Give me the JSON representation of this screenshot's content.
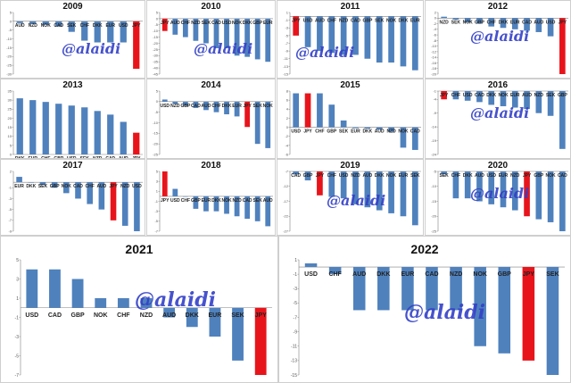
{
  "watermark": "@alaidi",
  "colors": {
    "bar": "#4f81bd",
    "highlight": "#e8141b",
    "axis": "#808080",
    "tick_text": "#555555"
  },
  "chart_data": [
    {
      "type": "bar",
      "title": "2009",
      "highlight": "JPY",
      "categories": [
        "AUD",
        "NZD",
        "NOK",
        "CAD",
        "SEK",
        "CHF",
        "DKK",
        "EUR",
        "USD",
        "JPY"
      ],
      "values": [
        -1,
        -1.5,
        -2,
        -3,
        -6,
        -11,
        -12,
        -12,
        -12,
        -27
      ],
      "ylim": [
        -30,
        5
      ],
      "yticks": [
        5,
        0,
        -5,
        -10,
        -15,
        -20,
        -25,
        -30
      ]
    },
    {
      "type": "bar",
      "title": "2010",
      "highlight": "JPY",
      "categories": [
        "JPY",
        "AUD",
        "CHF",
        "NZD",
        "SEK",
        "CAD",
        "USD",
        "NOK",
        "DKK",
        "GBP",
        "EUR"
      ],
      "values": [
        -10,
        -13,
        -15,
        -18,
        -20,
        -24,
        -24,
        -30,
        -31,
        -33,
        -35
      ],
      "ylim": [
        -45,
        5
      ],
      "yticks": [
        5,
        0,
        -5,
        -10,
        -15,
        -20,
        -25,
        -30,
        -35,
        -40,
        -45
      ]
    },
    {
      "type": "bar",
      "title": "2011",
      "highlight": "JPY",
      "categories": [
        "JPY",
        "USD",
        "AUD",
        "CHF",
        "NZD",
        "CAD",
        "GBP",
        "SEK",
        "NOK",
        "DKK",
        "EUR"
      ],
      "values": [
        -5,
        -8,
        -9,
        -9.5,
        -10,
        -10,
        -11,
        -12,
        -12,
        -13,
        -14
      ],
      "ylim": [
        -15,
        1
      ],
      "yticks": [
        1,
        -1,
        -3,
        -5,
        -7,
        -9,
        -11,
        -13,
        -15
      ]
    },
    {
      "type": "bar",
      "title": "2012",
      "highlight": "JPY",
      "categories": [
        "NZD",
        "SEK",
        "NOK",
        "GBP",
        "CHF",
        "DKK",
        "EUR",
        "CAD",
        "AUD",
        "USD",
        "JPY"
      ],
      "values": [
        0.5,
        -0.5,
        -1.5,
        -2,
        -3,
        -3.5,
        -4,
        -4.5,
        -5,
        -6.5,
        -20
      ],
      "ylim": [
        -20,
        2
      ],
      "yticks": [
        2,
        0,
        -2,
        -4,
        -6,
        -8,
        -10,
        -12,
        -14,
        -16,
        -18,
        -20
      ]
    },
    {
      "type": "bar",
      "title": "2013",
      "highlight": "JPY",
      "categories": [
        "DKK",
        "EUR",
        "CHF",
        "GBP",
        "USD",
        "SEK",
        "NZD",
        "CAD",
        "AUD",
        "JPY"
      ],
      "values": [
        31,
        30,
        29,
        28,
        27,
        26,
        24,
        22,
        18,
        12
      ],
      "ylim": [
        0,
        35
      ],
      "yticks": [
        35,
        30,
        25,
        20,
        15,
        10,
        5,
        0
      ]
    },
    {
      "type": "bar",
      "title": "2014",
      "highlight": "JPY",
      "categories": [
        "USD",
        "NZD",
        "GBP",
        "CAD",
        "AUD",
        "CHF",
        "DKK",
        "EUR",
        "JPY",
        "SEK",
        "NOK"
      ],
      "values": [
        1,
        -1,
        -2,
        -3,
        -4,
        -5,
        -6,
        -7,
        -12,
        -20,
        -22
      ],
      "ylim": [
        -25,
        5
      ],
      "yticks": [
        5,
        0,
        -5,
        -10,
        -15,
        -20,
        -25
      ]
    },
    {
      "type": "bar",
      "title": "2015",
      "highlight": "JPY",
      "categories": [
        "USD",
        "JPY",
        "CHF",
        "GBP",
        "SEK",
        "EUR",
        "DKK",
        "AUD",
        "NZD",
        "NOK",
        "CAD"
      ],
      "values": [
        7.5,
        7.5,
        7.5,
        5,
        1.5,
        -0.2,
        -0.3,
        -0.5,
        -1,
        -4.5,
        -5
      ],
      "ylim": [
        -6,
        8
      ],
      "yticks": [
        8,
        6,
        4,
        2,
        0,
        -2,
        -4,
        -6
      ]
    },
    {
      "type": "bar",
      "title": "2016",
      "highlight": "JPY",
      "categories": [
        "JPY",
        "CHF",
        "USD",
        "CAD",
        "DKK",
        "NOK",
        "EUR",
        "AUD",
        "NZD",
        "SEK",
        "GBP"
      ],
      "values": [
        -4,
        -4,
        -4.5,
        -5,
        -6,
        -6.5,
        -7,
        -7.5,
        -9,
        -10,
        -22
      ],
      "ylim": [
        -24,
        -1
      ],
      "yticks": [
        -1,
        -4,
        -9,
        -14,
        -19,
        -24
      ]
    },
    {
      "type": "bar",
      "title": "2017",
      "highlight": "JPY",
      "categories": [
        "EUR",
        "DKK",
        "SEK",
        "GBP",
        "NOK",
        "CAD",
        "CHF",
        "AUD",
        "JPY",
        "NZD",
        "USD"
      ],
      "values": [
        1,
        0,
        -0.5,
        -1,
        -2,
        -3,
        -4,
        -5,
        -7,
        -8,
        -9
      ],
      "ylim": [
        -9,
        2
      ],
      "yticks": [
        2,
        -1,
        -3,
        -5,
        -7,
        -9
      ]
    },
    {
      "type": "bar",
      "title": "2018",
      "highlight": "JPY",
      "categories": [
        "JPY",
        "USD",
        "CHF",
        "GBP",
        "EUR",
        "DKK",
        "NOK",
        "NZD",
        "CAD",
        "SEK",
        "AUD"
      ],
      "values": [
        5,
        1.5,
        0,
        -2.5,
        -3,
        -3,
        -3.5,
        -4,
        -4.5,
        -5,
        -6
      ],
      "ylim": [
        -7,
        5
      ],
      "yticks": [
        5,
        3,
        1,
        -1,
        -3,
        -5,
        -7
      ]
    },
    {
      "type": "bar",
      "title": "2019",
      "highlight": "JPY",
      "categories": [
        "CAD",
        "GBP",
        "JPY",
        "CHF",
        "USD",
        "NZD",
        "AUD",
        "DKK",
        "NOK",
        "EUR",
        "SEK"
      ],
      "values": [
        -8,
        -10,
        -15,
        -15.5,
        -16,
        -18,
        -19,
        -20,
        -21,
        -22,
        -25
      ],
      "ylim": [
        -27,
        -7
      ],
      "yticks": [
        -7,
        -12,
        -17,
        -22,
        -27
      ]
    },
    {
      "type": "bar",
      "title": "2020",
      "highlight": "JPY",
      "categories": [
        "SEK",
        "CHF",
        "DKK",
        "AUD",
        "USD",
        "EUR",
        "NZD",
        "JPY",
        "GBP",
        "NOK",
        "CAD"
      ],
      "values": [
        -6,
        -14,
        -14,
        -15,
        -16,
        -17,
        -18,
        -20,
        -21,
        -22,
        -25
      ],
      "ylim": [
        -25,
        -5
      ],
      "yticks": [
        -5,
        -10,
        -15,
        -20,
        -25
      ]
    },
    {
      "type": "bar",
      "title": "2021",
      "highlight": "JPY",
      "categories": [
        "USD",
        "CAD",
        "GBP",
        "NOK",
        "CHF",
        "NZD",
        "AUD",
        "DKK",
        "EUR",
        "SEK",
        "JPY"
      ],
      "values": [
        4,
        4,
        3,
        1,
        1,
        1,
        -1,
        -2,
        -3,
        -5.5,
        -7
      ],
      "ylim": [
        -7,
        5
      ],
      "yticks": [
        5,
        3,
        1,
        -1,
        -3,
        -5,
        -7
      ]
    },
    {
      "type": "bar",
      "title": "2022",
      "highlight": "JPY",
      "categories": [
        "USD",
        "CHF",
        "AUD",
        "DKK",
        "EUR",
        "CAD",
        "NZD",
        "NOK",
        "GBP",
        "JPY",
        "SEK"
      ],
      "values": [
        0.5,
        -1,
        -6,
        -6,
        -6,
        -6,
        -6,
        -11,
        -12,
        -13,
        -15
      ],
      "ylim": [
        -15,
        1
      ],
      "yticks": [
        1,
        -1,
        -3,
        -5,
        -7,
        -9,
        -11,
        -13,
        -15
      ]
    }
  ]
}
